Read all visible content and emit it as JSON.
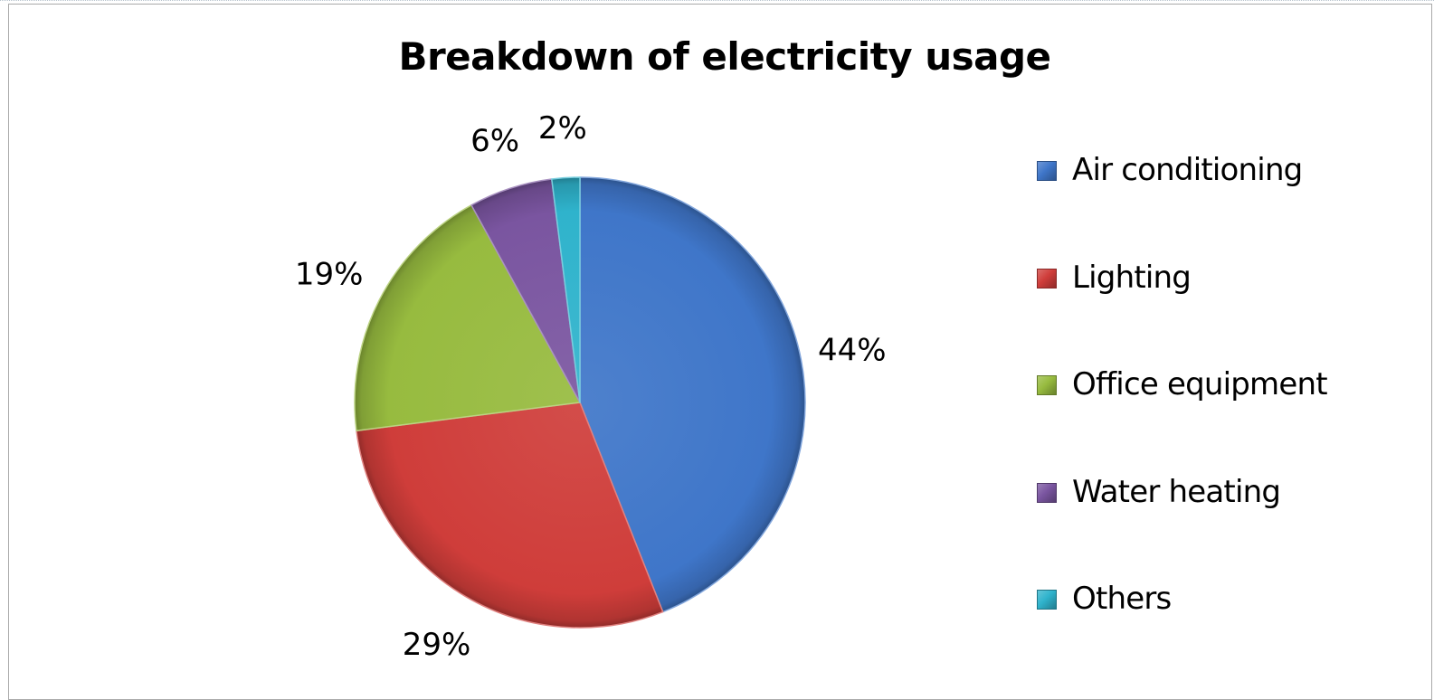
{
  "chart_data": {
    "type": "pie",
    "title": "Breakdown of electricity usage",
    "categories": [
      "Air conditioning",
      "Lighting",
      "Office equipment",
      "Water heating",
      "Others"
    ],
    "values": [
      44,
      29,
      19,
      6,
      2
    ],
    "data_labels": [
      "44%",
      "29%",
      "19%",
      "6%",
      "2%"
    ],
    "colors": [
      "#3f76c9",
      "#cf3d3a",
      "#97bb3f",
      "#7a55a0",
      "#2fb3cc"
    ],
    "legend_position": "right"
  }
}
